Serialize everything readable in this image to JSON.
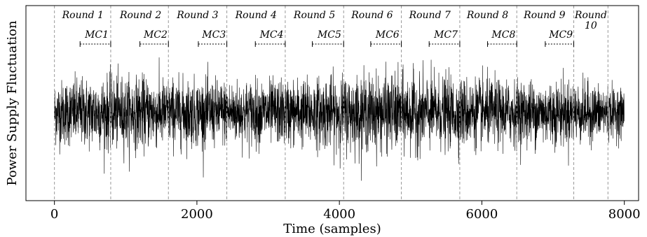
{
  "chart_data": {
    "type": "line",
    "xlabel": "Time (samples)",
    "ylabel": "Power Supply Fluctuation",
    "xlim": [
      -400,
      8200
    ],
    "ylim": [
      -1,
      1
    ],
    "xticks": [
      0,
      2000,
      4000,
      6000,
      8000
    ],
    "grid": false,
    "series": [
      {
        "description_of_signal": "dense noise trace",
        "n_samples": 8000,
        "baseline": 0.0,
        "amplitude_envelope": [
          {
            "x": 0,
            "amp": 0.55
          },
          {
            "x": 800,
            "amp": 0.62
          },
          {
            "x": 1600,
            "amp": 0.58
          },
          {
            "x": 2400,
            "amp": 0.55
          },
          {
            "x": 3200,
            "amp": 0.55
          },
          {
            "x": 4000,
            "amp": 0.62
          },
          {
            "x": 4800,
            "amp": 0.65
          },
          {
            "x": 5600,
            "amp": 0.6
          },
          {
            "x": 6400,
            "amp": 0.55
          },
          {
            "x": 7200,
            "amp": 0.55
          },
          {
            "x": 8000,
            "amp": 0.4
          }
        ]
      }
    ],
    "round_boundaries": [
      0,
      790,
      1600,
      2420,
      3240,
      4060,
      4870,
      5690,
      6490,
      7290,
      7770
    ],
    "rounds": [
      {
        "label": "Round 1",
        "x": 400
      },
      {
        "label": "Round 2",
        "x": 1210
      },
      {
        "label": "Round 3",
        "x": 2010
      },
      {
        "label": "Round 4",
        "x": 2830
      },
      {
        "label": "Round 5",
        "x": 3650
      },
      {
        "label": "Round 6",
        "x": 4460
      },
      {
        "label": "Round 7",
        "x": 5270
      },
      {
        "label": "Round 8",
        "x": 6080
      },
      {
        "label": "Round 9",
        "x": 6880
      },
      {
        "label": "Round",
        "label2": "10",
        "x": 7530
      }
    ],
    "mcs": [
      {
        "label": "MC1",
        "x_start": 360,
        "x_end": 790
      },
      {
        "label": "MC2",
        "x_start": 1200,
        "x_end": 1600
      },
      {
        "label": "MC3",
        "x_start": 2020,
        "x_end": 2420
      },
      {
        "label": "MC4",
        "x_start": 2820,
        "x_end": 3240
      },
      {
        "label": "MC5",
        "x_start": 3620,
        "x_end": 4060
      },
      {
        "label": "MC6",
        "x_start": 4440,
        "x_end": 4870
      },
      {
        "label": "MC7",
        "x_start": 5260,
        "x_end": 5690
      },
      {
        "label": "MC8",
        "x_start": 6080,
        "x_end": 6490
      },
      {
        "label": "MC9",
        "x_start": 6890,
        "x_end": 7290
      }
    ]
  }
}
